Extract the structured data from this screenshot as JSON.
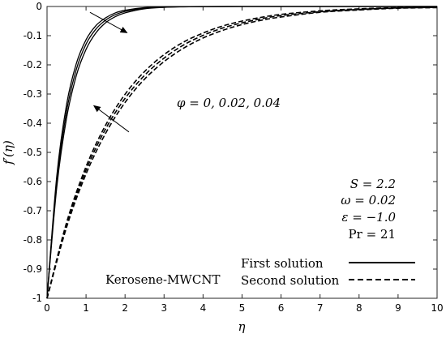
{
  "chart_data": {
    "type": "line",
    "title": "",
    "xlabel": "η",
    "ylabel": "f′(η)",
    "xlim": [
      0,
      10
    ],
    "ylim": [
      -1,
      0
    ],
    "grid": false,
    "legend_position": "bottom-right",
    "x_ticks": [
      "0",
      "1",
      "2",
      "3",
      "4",
      "5",
      "6",
      "7",
      "8",
      "9",
      "10"
    ],
    "y_ticks": [
      "0",
      "-0.1",
      "-0.2",
      "-0.3",
      "-0.4",
      "-0.5",
      "-0.6",
      "-0.7",
      "-0.8",
      "-0.9",
      "-1"
    ],
    "series": [
      {
        "group": "First solution",
        "phi": 0,
        "style": "solid",
        "color": "#000000",
        "x": [
          0,
          0.25,
          0.5,
          0.75,
          1,
          1.25,
          1.5,
          1.75,
          2,
          2.5,
          3,
          3.5,
          4,
          5,
          6,
          7,
          8,
          9,
          10
        ],
        "y": [
          -1,
          -0.581,
          -0.337,
          -0.196,
          -0.114,
          -0.066,
          -0.039,
          -0.022,
          -0.013,
          -0.004,
          -0.0015,
          -0.0005,
          -0.0002,
          0,
          0,
          0,
          0,
          0,
          0
        ]
      },
      {
        "group": "First solution",
        "phi": 0.02,
        "style": "solid",
        "color": "#000000",
        "x": [
          0,
          0.25,
          0.5,
          0.75,
          1,
          1.25,
          1.5,
          1.75,
          2,
          2.5,
          3,
          3.5,
          4,
          5,
          6,
          7,
          8,
          9,
          10
        ],
        "y": [
          -1,
          -0.6,
          -0.36,
          -0.216,
          -0.129,
          -0.078,
          -0.047,
          -0.028,
          -0.017,
          -0.006,
          -0.002,
          -0.0008,
          -0.0003,
          0,
          0,
          0,
          0,
          0,
          0
        ]
      },
      {
        "group": "First solution",
        "phi": 0.04,
        "style": "solid",
        "color": "#000000",
        "x": [
          0,
          0.25,
          0.5,
          0.75,
          1,
          1.25,
          1.5,
          1.75,
          2,
          2.5,
          3,
          3.5,
          4,
          5,
          6,
          7,
          8,
          9,
          10
        ],
        "y": [
          -1,
          -0.619,
          -0.383,
          -0.237,
          -0.147,
          -0.091,
          -0.056,
          -0.035,
          -0.022,
          -0.008,
          -0.003,
          -0.0012,
          -0.0005,
          0,
          0,
          0,
          0,
          0,
          0
        ]
      },
      {
        "group": "Second solution",
        "phi": 0,
        "style": "dashed",
        "color": "#000000",
        "x": [
          0,
          0.5,
          1,
          1.5,
          2,
          2.5,
          3,
          3.5,
          4,
          4.5,
          5,
          5.5,
          6,
          7,
          8,
          9,
          10
        ],
        "y": [
          -1,
          -0.757,
          -0.574,
          -0.435,
          -0.329,
          -0.249,
          -0.189,
          -0.143,
          -0.108,
          -0.082,
          -0.062,
          -0.047,
          -0.036,
          -0.02,
          -0.012,
          -0.006,
          -0.004
        ]
      },
      {
        "group": "Second solution",
        "phi": 0.02,
        "style": "dashed",
        "color": "#000000",
        "x": [
          0,
          0.5,
          1,
          1.5,
          2,
          2.5,
          3,
          3.5,
          4,
          4.5,
          5,
          5.5,
          6,
          7,
          8,
          9,
          10
        ],
        "y": [
          -1,
          -0.749,
          -0.561,
          -0.42,
          -0.315,
          -0.236,
          -0.177,
          -0.132,
          -0.099,
          -0.074,
          -0.056,
          -0.042,
          -0.031,
          -0.018,
          -0.01,
          -0.005,
          -0.003
        ]
      },
      {
        "group": "Second solution",
        "phi": 0.04,
        "style": "dashed",
        "color": "#000000",
        "x": [
          0,
          0.5,
          1,
          1.5,
          2,
          2.5,
          3,
          3.5,
          4,
          4.5,
          5,
          5.5,
          6,
          7,
          8,
          9,
          10
        ],
        "y": [
          -1,
          -0.741,
          -0.549,
          -0.407,
          -0.301,
          -0.223,
          -0.165,
          -0.122,
          -0.091,
          -0.067,
          -0.05,
          -0.037,
          -0.027,
          -0.015,
          -0.008,
          -0.004,
          -0.002
        ]
      }
    ],
    "legend": [
      {
        "label": "First solution",
        "style": "solid"
      },
      {
        "label": "Second solution",
        "style": "dashed"
      }
    ],
    "annotations": {
      "phi_label": "φ = 0, 0.02, 0.04",
      "fluid_label": "Kerosene-MWCNT",
      "params": [
        "S = 2.2",
        "ω = 0.02",
        "ε = −1.0",
        "Pr = 21"
      ]
    },
    "arrows": [
      {
        "from": [
          1.1,
          -0.02
        ],
        "to": [
          2.05,
          -0.09
        ]
      },
      {
        "from": [
          2.1,
          -0.43
        ],
        "to": [
          1.2,
          -0.34
        ]
      }
    ]
  }
}
